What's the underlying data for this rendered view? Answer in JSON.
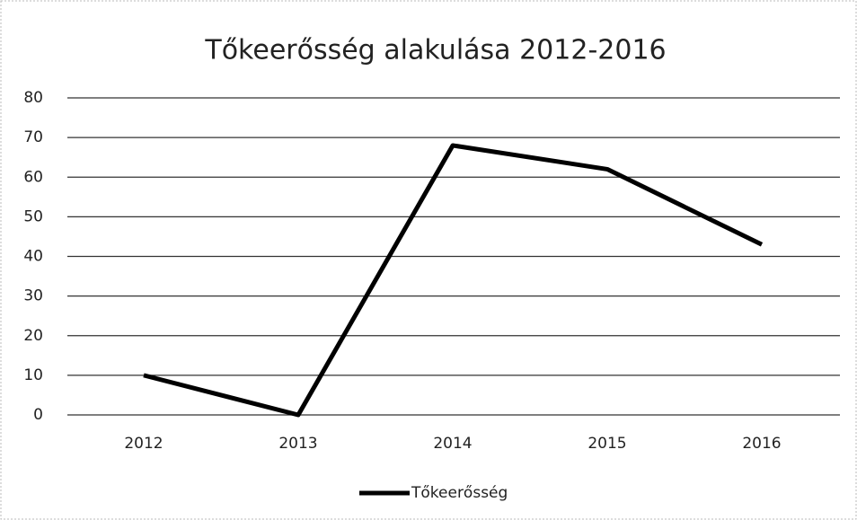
{
  "chart_data": {
    "type": "line",
    "title": "Tőkeerősség alakulása 2012-2016",
    "categories": [
      "2012",
      "2013",
      "2014",
      "2015",
      "2016"
    ],
    "series": [
      {
        "name": "Tőkeerősség",
        "color": "#000000",
        "values": [
          10,
          0,
          68,
          62,
          43
        ]
      }
    ],
    "ylim": [
      0,
      80
    ],
    "yticks": [
      0,
      10,
      20,
      30,
      40,
      50,
      60,
      70,
      80
    ],
    "grid": true,
    "legend": "bottom"
  }
}
